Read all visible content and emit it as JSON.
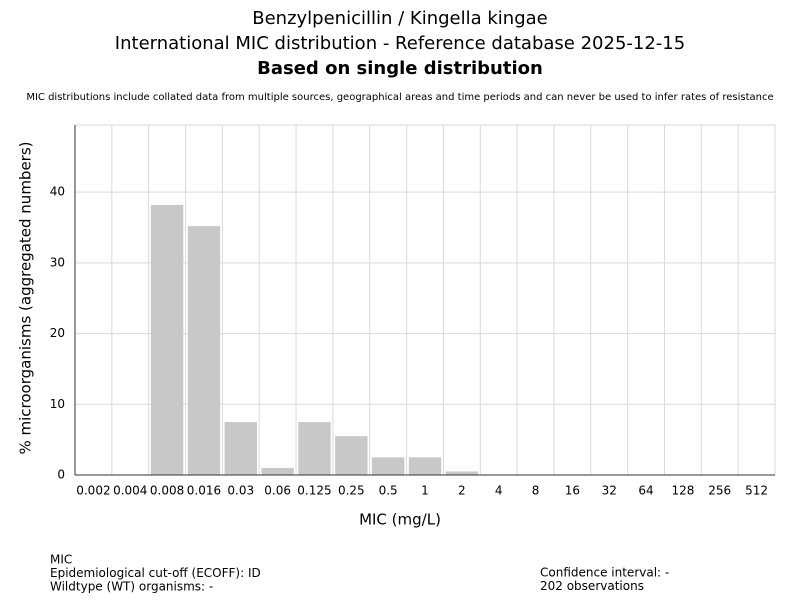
{
  "chart_data": {
    "type": "bar",
    "title": "Benzylpenicillin / Kingella kingae",
    "subtitle": "International MIC distribution - Reference database 2025-12-15",
    "subtitle2": "Based on single distribution",
    "note": "MIC distributions include collated data from multiple sources, geographical areas and time periods and can never be used to infer rates of resistance",
    "xlabel": "MIC (mg/L)",
    "ylabel": "% microorganisms (aggregated numbers)",
    "categories": [
      "0.002",
      "0.004",
      "0.008",
      "0.016",
      "0.03",
      "0.06",
      "0.125",
      "0.25",
      "0.5",
      "1",
      "2",
      "4",
      "8",
      "16",
      "32",
      "64",
      "128",
      "256",
      "512"
    ],
    "values": [
      0,
      0,
      38.2,
      35.2,
      7.5,
      1.0,
      7.5,
      5.5,
      2.5,
      2.5,
      0.5,
      0,
      0,
      0,
      0,
      0,
      0,
      0,
      0
    ],
    "color": "#c8c8c8",
    "ylim": [
      0,
      49.5
    ],
    "yticks": [
      0,
      10,
      20,
      30,
      40
    ],
    "grid": true,
    "footer_left": [
      "MIC",
      "Epidemiological cut-off (ECOFF): ID",
      "Wildtype (WT) organisms:  -"
    ],
    "footer_right": [
      "Confidence interval: -",
      "202 observations"
    ]
  }
}
